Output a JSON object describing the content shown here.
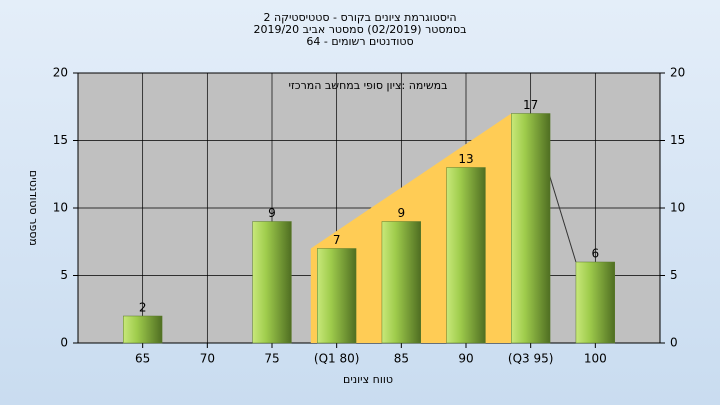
{
  "chart_data": {
    "type": "bar",
    "title": [
      "היסטוגרמת ציונים בקורס - סטטיסטיקה 2",
      "בסמסטר (02/2019) סמסטר אביב 2019/20",
      "סטודנטים רשומים - 64"
    ],
    "annotation": "במשימה :ציון סופי במחשב המרכזי",
    "x_label": "טווח ציונים",
    "y_label": "מספר סטודנטים",
    "categories": [
      "65",
      "70",
      "75",
      "(Q1 80)",
      "85",
      "90",
      "(Q3 95)",
      "100"
    ],
    "values": [
      2,
      null,
      9,
      7,
      9,
      13,
      17,
      6
    ],
    "color": "#8fc03c",
    "area_color": "#ffcc55",
    "ylim": [
      0,
      20
    ],
    "yticks": [
      0,
      5,
      10,
      15,
      20
    ],
    "y2lim": [
      0,
      20
    ],
    "y2ticks": [
      0,
      5,
      10,
      15,
      20
    ],
    "grid": true
  }
}
